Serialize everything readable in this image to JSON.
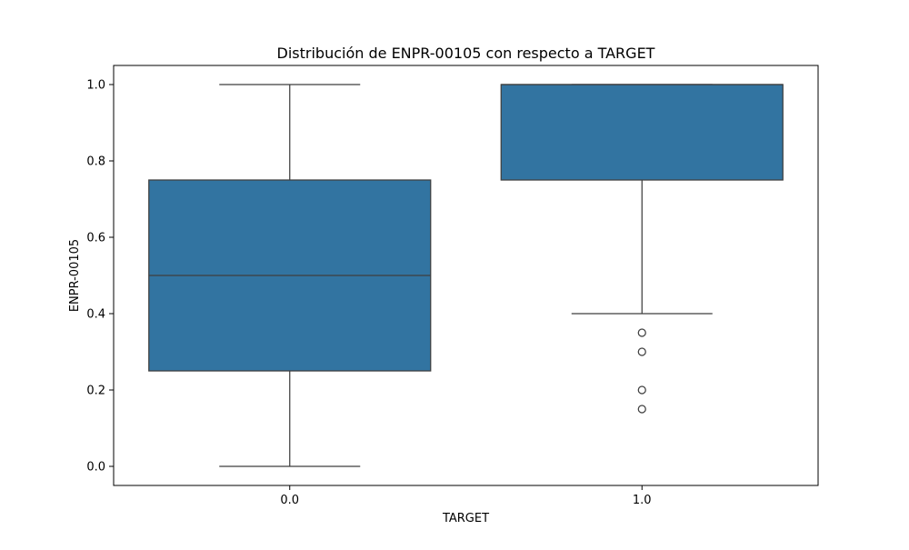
{
  "chart_data": {
    "type": "box",
    "title": "Distribución de ENPR-00105 con respecto a TARGET",
    "xlabel": "TARGET",
    "ylabel": "ENPR-00105",
    "categories": [
      "0.0",
      "1.0"
    ],
    "ylim": [
      -0.05,
      1.05
    ],
    "yticks": [
      0.0,
      0.2,
      0.4,
      0.6,
      0.8,
      1.0
    ],
    "ytick_labels": [
      "0.0",
      "0.2",
      "0.4",
      "0.6",
      "0.8",
      "1.0"
    ],
    "grid": false,
    "color": "#3274a1",
    "boxes": [
      {
        "category": "0.0",
        "whisker_low": 0.0,
        "q1": 0.25,
        "median": 0.5,
        "q3": 0.75,
        "whisker_high": 1.0,
        "outliers": []
      },
      {
        "category": "1.0",
        "whisker_low": 0.4,
        "q1": 0.75,
        "median": 1.0,
        "q3": 1.0,
        "whisker_high": 1.0,
        "outliers": [
          0.35,
          0.3,
          0.2,
          0.15
        ]
      }
    ]
  }
}
